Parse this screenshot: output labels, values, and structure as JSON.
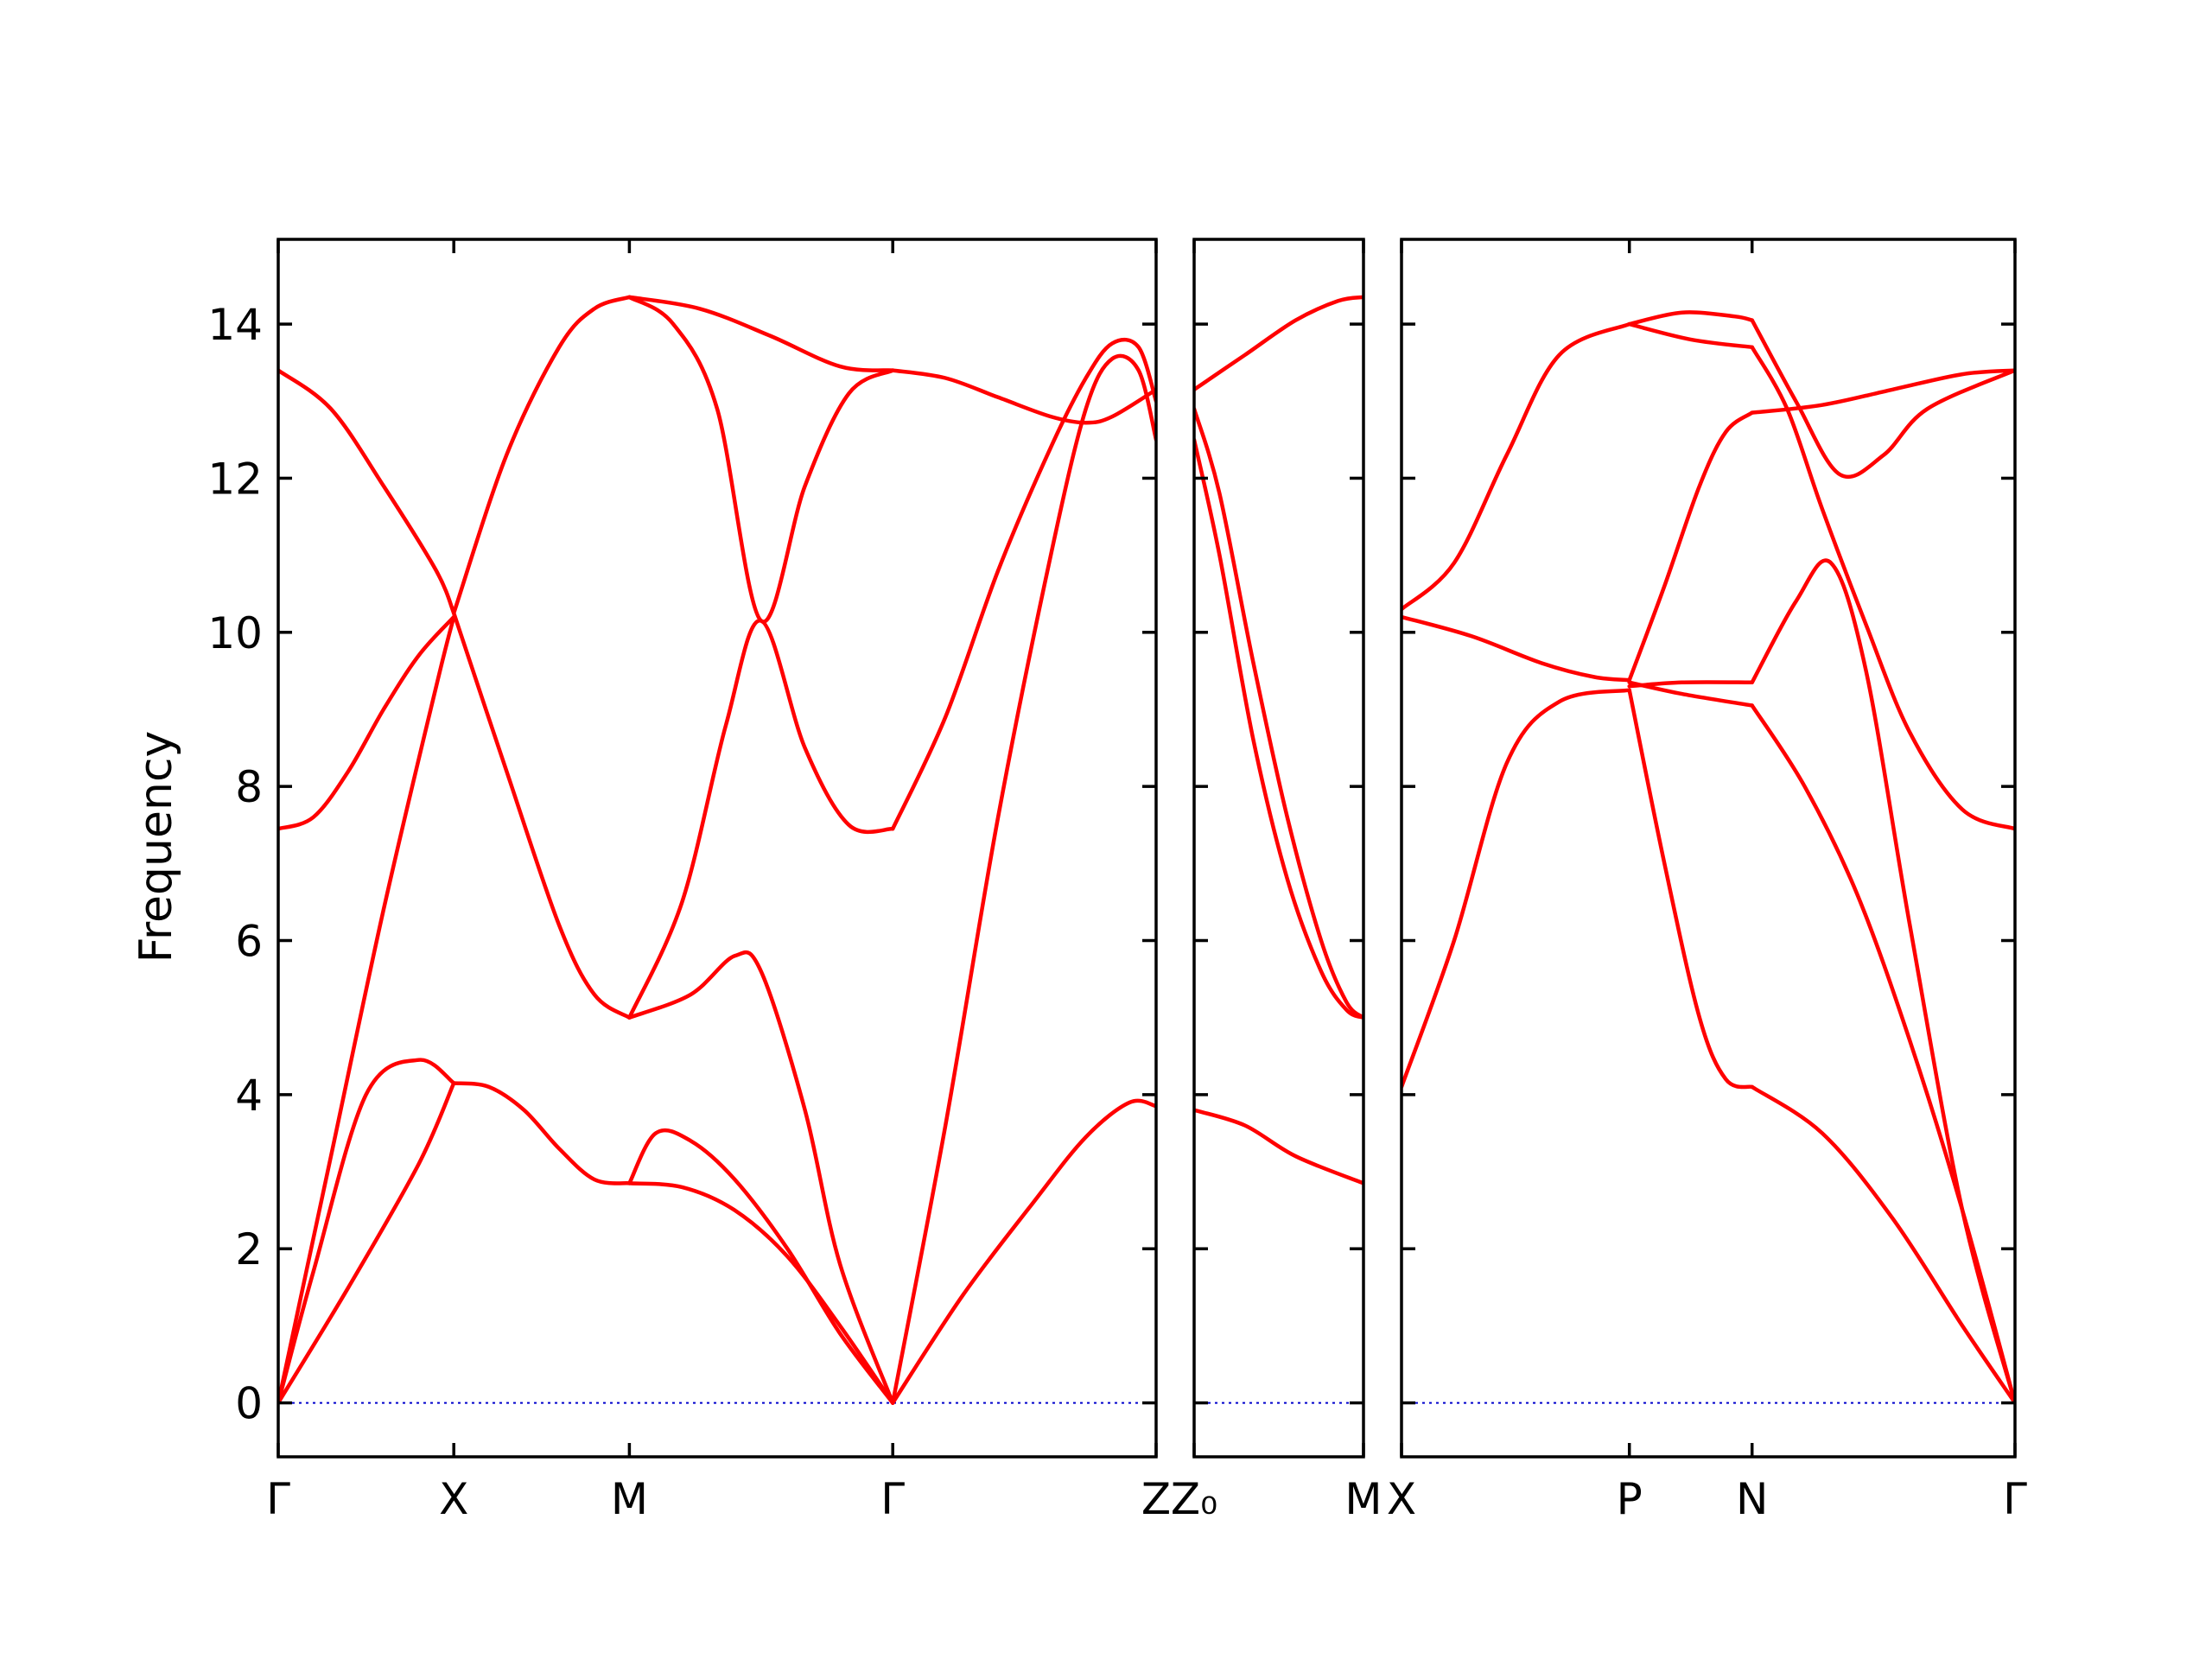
{
  "chart_data": {
    "type": "line",
    "title": "",
    "ylabel": "Frequency",
    "ylim": [
      -0.7,
      15.1
    ],
    "yticks": [
      0,
      2,
      4,
      6,
      8,
      10,
      12,
      14
    ],
    "colors": {
      "band": "#ff0000",
      "zero_line": "#0000cc",
      "frame": "#000000"
    },
    "grid": false,
    "panels": [
      {
        "name": "segment-1",
        "path_labels": [
          "Γ",
          "X",
          "M",
          "Γ",
          "Z"
        ],
        "xticks": [
          0,
          1,
          2,
          3.5,
          5
        ],
        "xlim": [
          0,
          5
        ],
        "bands": [
          {
            "x": [
              0,
              0.2,
              0.5,
              0.8,
              1
            ],
            "y": [
              0,
              1.7,
              4.0,
              4.45,
              4.15
            ]
          },
          {
            "x": [
              0,
              0.4,
              0.8,
              1
            ],
            "y": [
              0,
              1.5,
              3.1,
              4.15
            ]
          },
          {
            "x": [
              0,
              0.3,
              0.6,
              0.9,
              1
            ],
            "y": [
              0,
              3.2,
              6.4,
              9.3,
              10.2
            ]
          },
          {
            "x": [
              0,
              0.2,
              0.4,
              0.6,
              0.8,
              1
            ],
            "y": [
              7.45,
              7.6,
              8.2,
              9.0,
              9.7,
              10.2
            ]
          },
          {
            "x": [
              0,
              0.3,
              0.6,
              0.9,
              1
            ],
            "y": [
              13.4,
              12.9,
              11.9,
              10.8,
              10.25
            ]
          },
          {
            "x": [
              1,
              1.2,
              1.4,
              1.6,
              1.8,
              2
            ],
            "y": [
              4.15,
              4.1,
              3.8,
              3.3,
              2.9,
              2.85
            ]
          },
          {
            "x": [
              1,
              1.3,
              1.6,
              1.8,
              2
            ],
            "y": [
              10.25,
              8.2,
              6.2,
              5.3,
              5.0
            ]
          },
          {
            "x": [
              1,
              1.3,
              1.6,
              1.8,
              2
            ],
            "y": [
              10.25,
              12.3,
              13.7,
              14.2,
              14.35
            ]
          },
          {
            "x": [
              2,
              2.15,
              2.35,
              2.6,
              2.9,
              3.2,
              3.5
            ],
            "y": [
              2.85,
              3.5,
              3.4,
              2.9,
              2.0,
              0.9,
              0
            ]
          },
          {
            "x": [
              2,
              2.3,
              2.6,
              2.9,
              3.2,
              3.5
            ],
            "y": [
              2.85,
              2.8,
              2.5,
              1.9,
              1.0,
              0
            ]
          },
          {
            "x": [
              2,
              2.35,
              2.6,
              2.75,
              3.0,
              3.2,
              3.5
            ],
            "y": [
              5.0,
              5.3,
              5.8,
              5.6,
              3.8,
              1.8,
              0
            ]
          },
          {
            "x": [
              2,
              2.3,
              2.55,
              2.75,
              3.0,
              3.25,
              3.5
            ],
            "y": [
              5.0,
              6.5,
              8.8,
              10.15,
              8.5,
              7.5,
              7.45
            ]
          },
          {
            "x": [
              2,
              2.25,
              2.5,
              2.75,
              3.0,
              3.25,
              3.5
            ],
            "y": [
              14.35,
              14.0,
              12.9,
              10.15,
              11.9,
              13.1,
              13.4
            ]
          },
          {
            "x": [
              2,
              2.4,
              2.8,
              3.2,
              3.5
            ],
            "y": [
              14.35,
              14.2,
              13.85,
              13.45,
              13.4
            ]
          },
          {
            "x": [
              3.5,
              3.9,
              4.3,
              4.6,
              4.85,
              5.0
            ],
            "y": [
              0,
              1.4,
              2.6,
              3.45,
              3.9,
              3.85
            ]
          },
          {
            "x": [
              3.5,
              3.8,
              4.1,
              4.4,
              4.6,
              4.75,
              4.9,
              5.0
            ],
            "y": [
              0,
              3.6,
              7.6,
              11.0,
              12.9,
              13.55,
              13.4,
              12.5
            ]
          },
          {
            "x": [
              3.5,
              3.8,
              4.1,
              4.4,
              4.6,
              4.75,
              4.9,
              5.0
            ],
            "y": [
              7.45,
              8.9,
              10.8,
              12.4,
              13.3,
              13.75,
              13.7,
              13.0
            ]
          },
          {
            "x": [
              3.5,
              3.8,
              4.1,
              4.4,
              4.6,
              4.75,
              5.0
            ],
            "y": [
              13.4,
              13.3,
              13.05,
              12.8,
              12.72,
              12.8,
              13.15
            ]
          }
        ]
      },
      {
        "name": "segment-2",
        "path_labels": [
          "Z₀",
          "M"
        ],
        "xticks": [
          0,
          1
        ],
        "xlim": [
          0,
          1
        ],
        "bands": [
          {
            "x": [
              0,
              0.3,
              0.6,
              1
            ],
            "y": [
              3.8,
              3.6,
              3.2,
              2.85
            ]
          },
          {
            "x": [
              0,
              0.15,
              0.35,
              0.55,
              0.75,
              0.9,
              1
            ],
            "y": [
              12.5,
              11.0,
              8.6,
              6.8,
              5.6,
              5.1,
              5.0
            ]
          },
          {
            "x": [
              0,
              0.15,
              0.35,
              0.55,
              0.75,
              0.9,
              1
            ],
            "y": [
              12.9,
              11.8,
              9.6,
              7.6,
              6.0,
              5.2,
              5.0
            ]
          },
          {
            "x": [
              0,
              0.3,
              0.6,
              0.85,
              1
            ],
            "y": [
              13.15,
              13.6,
              14.05,
              14.3,
              14.35
            ]
          }
        ]
      },
      {
        "name": "segment-3",
        "path_labels": [
          "X",
          "P",
          "N",
          "Γ"
        ],
        "xticks": [
          0,
          1.3,
          2.0,
          3.5
        ],
        "xlim": [
          0,
          3.5
        ],
        "bands": [
          {
            "x": [
              0,
              0.3,
              0.6,
              0.9,
              1.3
            ],
            "y": [
              4.1,
              6.0,
              8.3,
              9.1,
              9.25
            ]
          },
          {
            "x": [
              0,
              0.4,
              0.8,
              1.1,
              1.3
            ],
            "y": [
              10.2,
              9.95,
              9.6,
              9.42,
              9.38
            ]
          },
          {
            "x": [
              0,
              0.3,
              0.6,
              0.9,
              1.3
            ],
            "y": [
              10.3,
              10.9,
              12.3,
              13.6,
              14.0
            ]
          },
          {
            "x": [
              1.3,
              1.5,
              1.7,
              1.85,
              2.0
            ],
            "y": [
              9.25,
              7.0,
              5.0,
              4.2,
              4.1
            ]
          },
          {
            "x": [
              1.3,
              1.6,
              2.0
            ],
            "y": [
              9.3,
              9.35,
              9.35
            ]
          },
          {
            "x": [
              1.3,
              1.6,
              2.0
            ],
            "y": [
              9.35,
              9.2,
              9.05
            ]
          },
          {
            "x": [
              1.3,
              1.5,
              1.7,
              1.85,
              2.0
            ],
            "y": [
              9.38,
              10.6,
              11.9,
              12.6,
              12.85
            ]
          },
          {
            "x": [
              1.3,
              1.65,
              2.0
            ],
            "y": [
              14.0,
              13.8,
              13.7
            ]
          },
          {
            "x": [
              1.3,
              1.6,
              1.9,
              2.0
            ],
            "y": [
              14.0,
              14.15,
              14.1,
              14.05
            ]
          },
          {
            "x": [
              2.0,
              2.4,
              2.8,
              3.2,
              3.5
            ],
            "y": [
              4.1,
              3.5,
              2.4,
              1.0,
              0
            ]
          },
          {
            "x": [
              2.0,
              2.3,
              2.6,
              2.9,
              3.2,
              3.5
            ],
            "y": [
              9.05,
              8.0,
              6.6,
              4.7,
              2.5,
              0
            ]
          },
          {
            "x": [
              2.0,
              2.25,
              2.45,
              2.65,
              2.9,
              3.2,
              3.5
            ],
            "y": [
              9.35,
              10.4,
              10.9,
              9.5,
              6.2,
              2.5,
              0
            ]
          },
          {
            "x": [
              2.0,
              2.2,
              2.4,
              2.65,
              2.9,
              3.2,
              3.5
            ],
            "y": [
              13.7,
              12.9,
              11.6,
              10.1,
              8.7,
              7.7,
              7.45
            ]
          },
          {
            "x": [
              2.0,
              2.25,
              2.5,
              2.75,
              3.0,
              3.5
            ],
            "y": [
              14.05,
              13.0,
              12.05,
              12.3,
              12.9,
              13.4
            ]
          },
          {
            "x": [
              2.0,
              2.4,
              2.8,
              3.2,
              3.5
            ],
            "y": [
              12.85,
              12.95,
              13.15,
              13.35,
              13.4
            ]
          }
        ]
      }
    ]
  }
}
